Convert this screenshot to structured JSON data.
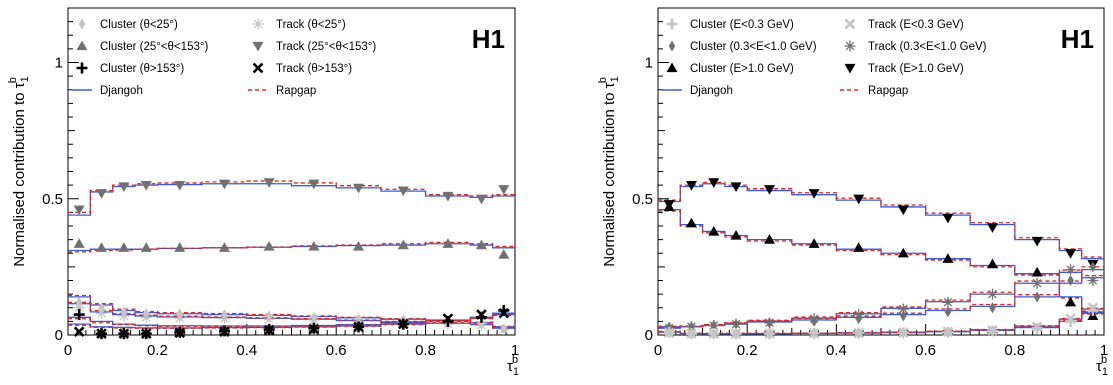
{
  "chart_data": [
    {
      "type": "line",
      "panel": "left",
      "logo": "H1",
      "ylabel": "Normalised contribution to τ",
      "ylabel_sub": "1",
      "ylabel_sup": "b",
      "xlabel": "τ",
      "xlabel_sub": "1",
      "xlabel_sup": "b",
      "xlim": [
        0,
        1
      ],
      "ylim": [
        0,
        1.2
      ],
      "xticks": [
        "0",
        "0.2",
        "0.4",
        "0.6",
        "0.8",
        "1"
      ],
      "yticks": [
        "0",
        "0.5",
        "1"
      ],
      "bin_edges": [
        0,
        0.05,
        0.1,
        0.15,
        0.2,
        0.3,
        0.4,
        0.5,
        0.6,
        0.7,
        0.8,
        0.9,
        0.95,
        1.0
      ],
      "bin_centers": [
        0.025,
        0.075,
        0.125,
        0.175,
        0.25,
        0.35,
        0.45,
        0.55,
        0.65,
        0.75,
        0.85,
        0.925,
        0.975
      ],
      "legend_entries": [
        {
          "label": "Cluster (θ<25°)",
          "marker": "diamond",
          "color": "#c4c4c4"
        },
        {
          "label": "Track (θ<25°)",
          "marker": "star",
          "color": "#c4c4c4"
        },
        {
          "label": "Cluster (25°<θ<153°)",
          "marker": "triangle-up",
          "color": "#707070"
        },
        {
          "label": "Track (25°<θ<153°)",
          "marker": "triangle-down",
          "color": "#707070"
        },
        {
          "label": "Cluster (θ>153°)",
          "marker": "plus",
          "color": "#000000"
        },
        {
          "label": "Track (θ>153°)",
          "marker": "cross",
          "color": "#000000"
        },
        {
          "label": "Djangoh",
          "marker": "line-solid",
          "color": "#3b5bd6"
        },
        {
          "label": "Rapgap",
          "marker": "line-dashed",
          "color": "#d62828"
        }
      ],
      "series": [
        {
          "name": "Track (25°<θ<153°)",
          "marker": "triangle-down",
          "color": "#707070",
          "values": [
            0.46,
            0.52,
            0.545,
            0.55,
            0.55,
            0.555,
            0.56,
            0.555,
            0.54,
            0.53,
            0.51,
            0.5,
            0.535
          ]
        },
        {
          "name": "Cluster (25°<θ<153°)",
          "marker": "triangle-up",
          "color": "#707070",
          "values": [
            0.335,
            0.32,
            0.32,
            0.32,
            0.32,
            0.32,
            0.325,
            0.325,
            0.325,
            0.33,
            0.335,
            0.33,
            0.295
          ]
        },
        {
          "name": "Cluster (θ<25°)",
          "marker": "diamond",
          "color": "#c4c4c4",
          "values": [
            0.12,
            0.1,
            0.085,
            0.08,
            0.078,
            0.075,
            0.07,
            0.065,
            0.06,
            0.055,
            0.05,
            0.04,
            0.02
          ]
        },
        {
          "name": "Track (θ<25°)",
          "marker": "star",
          "color": "#c4c4c4",
          "values": [
            0.1,
            0.08,
            0.07,
            0.065,
            0.062,
            0.06,
            0.058,
            0.055,
            0.05,
            0.045,
            0.04,
            0.035,
            0.02
          ]
        },
        {
          "name": "Cluster (θ>153°)",
          "marker": "plus",
          "color": "#000000",
          "values": [
            0.075,
            0.005,
            0.005,
            0.005,
            0.01,
            0.015,
            0.02,
            0.025,
            0.03,
            0.04,
            0.05,
            0.065,
            0.09
          ]
        },
        {
          "name": "Track (θ>153°)",
          "marker": "cross",
          "color": "#000000",
          "values": [
            0.012,
            0.005,
            0.005,
            0.005,
            0.008,
            0.012,
            0.018,
            0.022,
            0.03,
            0.04,
            0.06,
            0.075,
            0.08
          ]
        }
      ],
      "mc_models": [
        {
          "name": "Djangoh",
          "style": "solid",
          "color": "#3b5bd6",
          "histograms": [
            [
              0.44,
              0.525,
              0.545,
              0.55,
              0.552,
              0.555,
              0.555,
              0.548,
              0.54,
              0.528,
              0.51,
              0.505,
              0.51
            ],
            [
              0.31,
              0.315,
              0.315,
              0.315,
              0.318,
              0.32,
              0.322,
              0.325,
              0.328,
              0.33,
              0.335,
              0.33,
              0.32
            ],
            [
              0.14,
              0.11,
              0.09,
              0.082,
              0.078,
              0.075,
              0.072,
              0.068,
              0.063,
              0.058,
              0.052,
              0.045,
              0.03
            ],
            [
              0.115,
              0.085,
              0.075,
              0.07,
              0.066,
              0.064,
              0.061,
              0.058,
              0.053,
              0.048,
              0.043,
              0.038,
              0.025
            ],
            [
              0.065,
              0.05,
              0.04,
              0.036,
              0.034,
              0.033,
              0.033,
              0.035,
              0.038,
              0.045,
              0.055,
              0.065,
              0.08
            ],
            [
              0.04,
              0.03,
              0.028,
              0.026,
              0.026,
              0.027,
              0.028,
              0.03,
              0.033,
              0.04,
              0.052,
              0.062,
              0.075
            ]
          ]
        },
        {
          "name": "Rapgap",
          "style": "dashed",
          "color": "#d62828",
          "histograms": [
            [
              0.45,
              0.53,
              0.55,
              0.555,
              0.558,
              0.562,
              0.565,
              0.558,
              0.548,
              0.535,
              0.515,
              0.51,
              0.515
            ],
            [
              0.305,
              0.31,
              0.312,
              0.315,
              0.318,
              0.32,
              0.323,
              0.327,
              0.33,
              0.335,
              0.34,
              0.335,
              0.325
            ],
            [
              0.145,
              0.115,
              0.095,
              0.086,
              0.082,
              0.079,
              0.075,
              0.07,
              0.065,
              0.06,
              0.054,
              0.047,
              0.032
            ],
            [
              0.12,
              0.09,
              0.078,
              0.073,
              0.069,
              0.066,
              0.063,
              0.06,
              0.055,
              0.05,
              0.045,
              0.04,
              0.027
            ],
            [
              0.06,
              0.045,
              0.038,
              0.034,
              0.032,
              0.031,
              0.031,
              0.033,
              0.036,
              0.043,
              0.052,
              0.062,
              0.078
            ],
            [
              0.036,
              0.028,
              0.026,
              0.025,
              0.025,
              0.026,
              0.027,
              0.029,
              0.032,
              0.038,
              0.05,
              0.06,
              0.072
            ]
          ]
        }
      ]
    },
    {
      "type": "line",
      "panel": "right",
      "logo": "H1",
      "ylabel": "Normalised contribution to τ",
      "ylabel_sub": "1",
      "ylabel_sup": "b",
      "xlabel": "τ",
      "xlabel_sub": "1",
      "xlabel_sup": "b",
      "xlim": [
        0,
        1
      ],
      "ylim": [
        0,
        1.2
      ],
      "xticks": [
        "0",
        "0.2",
        "0.4",
        "0.6",
        "0.8",
        "1"
      ],
      "yticks": [
        "0",
        "0.5",
        "1"
      ],
      "bin_edges": [
        0,
        0.05,
        0.1,
        0.15,
        0.2,
        0.3,
        0.4,
        0.5,
        0.6,
        0.7,
        0.8,
        0.9,
        0.95,
        1.0
      ],
      "bin_centers": [
        0.025,
        0.075,
        0.125,
        0.175,
        0.25,
        0.35,
        0.45,
        0.55,
        0.65,
        0.75,
        0.85,
        0.925,
        0.975
      ],
      "legend_entries": [
        {
          "label": "Cluster (E<0.3 GeV)",
          "marker": "plus",
          "color": "#c4c4c4"
        },
        {
          "label": "Track (E<0.3 GeV)",
          "marker": "cross",
          "color": "#c4c4c4"
        },
        {
          "label": "Cluster (0.3<E<1.0 GeV)",
          "marker": "diamond",
          "color": "#707070"
        },
        {
          "label": "Track (0.3<E<1.0 GeV)",
          "marker": "star",
          "color": "#707070"
        },
        {
          "label": "Cluster (E>1.0 GeV)",
          "marker": "triangle-up",
          "color": "#000000"
        },
        {
          "label": "Track (E>1.0 GeV)",
          "marker": "triangle-down",
          "color": "#000000"
        },
        {
          "label": "Djangoh",
          "marker": "line-solid",
          "color": "#3b5bd6"
        },
        {
          "label": "Rapgap",
          "marker": "line-dashed",
          "color": "#d62828"
        }
      ],
      "series": [
        {
          "name": "Track (E>1.0 GeV)",
          "marker": "triangle-down",
          "color": "#000000",
          "values": [
            0.48,
            0.55,
            0.56,
            0.545,
            0.535,
            0.52,
            0.5,
            0.46,
            0.43,
            0.395,
            0.345,
            0.3,
            0.26
          ]
        },
        {
          "name": "Cluster (E>1.0 GeV)",
          "marker": "triangle-up",
          "color": "#000000",
          "values": [
            0.47,
            0.41,
            0.38,
            0.365,
            0.35,
            0.335,
            0.32,
            0.3,
            0.28,
            0.26,
            0.23,
            0.12,
            0.07
          ]
        },
        {
          "name": "Cluster (0.3<E<1.0 GeV)",
          "marker": "diamond",
          "color": "#707070",
          "values": [
            0.03,
            0.03,
            0.035,
            0.04,
            0.045,
            0.05,
            0.06,
            0.07,
            0.085,
            0.1,
            0.14,
            0.2,
            0.25
          ]
        },
        {
          "name": "Track (0.3<E<1.0 GeV)",
          "marker": "star",
          "color": "#707070",
          "values": [
            0.025,
            0.03,
            0.035,
            0.04,
            0.045,
            0.06,
            0.075,
            0.095,
            0.12,
            0.15,
            0.19,
            0.24,
            0.2
          ]
        },
        {
          "name": "Cluster (E<0.3 GeV)",
          "marker": "plus",
          "color": "#c4c4c4",
          "values": [
            0.01,
            0.005,
            0.005,
            0.005,
            0.005,
            0.006,
            0.007,
            0.008,
            0.01,
            0.015,
            0.025,
            0.05,
            0.09
          ]
        },
        {
          "name": "Track (E<0.3 GeV)",
          "marker": "cross",
          "color": "#c4c4c4",
          "values": [
            0.008,
            0.005,
            0.005,
            0.005,
            0.005,
            0.006,
            0.007,
            0.009,
            0.012,
            0.017,
            0.03,
            0.06,
            0.1
          ]
        }
      ],
      "mc_models": [
        {
          "name": "Djangoh",
          "style": "solid",
          "color": "#3b5bd6",
          "histograms": [
            [
              0.49,
              0.545,
              0.555,
              0.545,
              0.53,
              0.515,
              0.495,
              0.47,
              0.44,
              0.405,
              0.35,
              0.31,
              0.28
            ],
            [
              0.46,
              0.405,
              0.38,
              0.365,
              0.35,
              0.335,
              0.315,
              0.3,
              0.28,
              0.255,
              0.225,
              0.14,
              0.08
            ],
            [
              0.03,
              0.03,
              0.035,
              0.04,
              0.048,
              0.055,
              0.065,
              0.075,
              0.09,
              0.105,
              0.14,
              0.19,
              0.24
            ],
            [
              0.025,
              0.03,
              0.035,
              0.042,
              0.05,
              0.062,
              0.078,
              0.098,
              0.122,
              0.15,
              0.19,
              0.23,
              0.21
            ],
            [
              0.012,
              0.006,
              0.005,
              0.005,
              0.005,
              0.006,
              0.007,
              0.009,
              0.012,
              0.017,
              0.027,
              0.05,
              0.085
            ],
            [
              0.01,
              0.005,
              0.005,
              0.005,
              0.005,
              0.006,
              0.008,
              0.01,
              0.013,
              0.019,
              0.032,
              0.058,
              0.095
            ]
          ]
        },
        {
          "name": "Rapgap",
          "style": "dashed",
          "color": "#d62828",
          "histograms": [
            [
              0.495,
              0.55,
              0.56,
              0.55,
              0.537,
              0.522,
              0.502,
              0.477,
              0.447,
              0.412,
              0.357,
              0.316,
              0.286
            ],
            [
              0.455,
              0.4,
              0.375,
              0.36,
              0.345,
              0.33,
              0.31,
              0.295,
              0.275,
              0.25,
              0.22,
              0.136,
              0.077
            ],
            [
              0.032,
              0.033,
              0.038,
              0.044,
              0.052,
              0.06,
              0.07,
              0.08,
              0.096,
              0.112,
              0.148,
              0.198,
              0.25
            ],
            [
              0.027,
              0.032,
              0.038,
              0.045,
              0.054,
              0.066,
              0.082,
              0.103,
              0.128,
              0.157,
              0.198,
              0.238,
              0.218
            ],
            [
              0.013,
              0.007,
              0.006,
              0.006,
              0.006,
              0.007,
              0.008,
              0.01,
              0.013,
              0.018,
              0.029,
              0.053,
              0.088
            ],
            [
              0.011,
              0.006,
              0.006,
              0.006,
              0.006,
              0.007,
              0.009,
              0.011,
              0.014,
              0.02,
              0.034,
              0.061,
              0.098
            ]
          ]
        }
      ]
    }
  ]
}
